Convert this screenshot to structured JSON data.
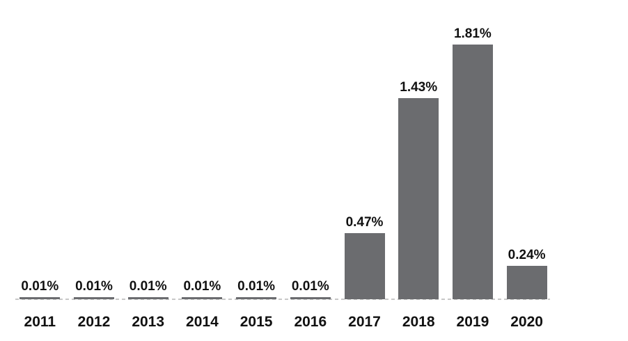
{
  "chart_data": {
    "type": "bar",
    "title": "",
    "xlabel": "",
    "ylabel": "",
    "categories": [
      "2011",
      "2012",
      "2013",
      "2014",
      "2015",
      "2016",
      "2017",
      "2018",
      "2019",
      "2020"
    ],
    "values": [
      0.01,
      0.01,
      0.01,
      0.01,
      0.01,
      0.01,
      0.47,
      1.43,
      1.81,
      0.24
    ],
    "value_labels": [
      "0.01%",
      "0.01%",
      "0.01%",
      "0.01%",
      "0.01%",
      "0.01%",
      "0.47%",
      "1.43%",
      "1.81%",
      "0.24%"
    ],
    "ylim": [
      0,
      2
    ],
    "grid": "off",
    "legend": "none",
    "axis_style": "dashed-baseline-only",
    "bar_color": "#6b6c6f",
    "baseline_color": "#c7c7c7",
    "text_color": "#111111"
  }
}
